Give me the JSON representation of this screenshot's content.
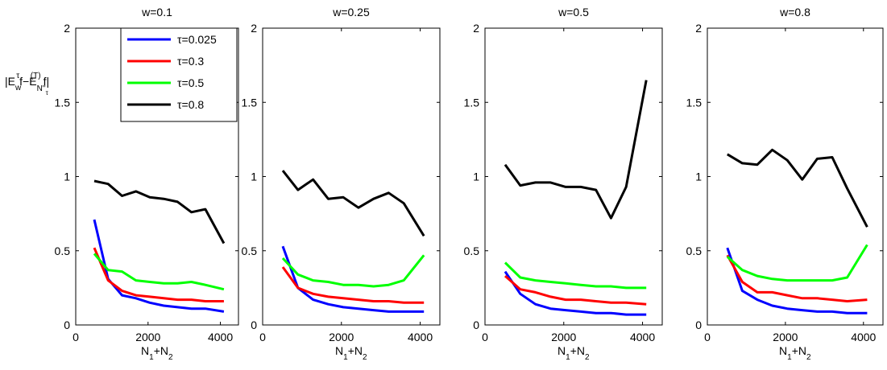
{
  "ylabel": {
    "prefix": "|E",
    "sub1": "w",
    "sup1": "τ",
    "mid": "f−E",
    "sub2": "N''",
    "sub2b": "τ",
    "sup2": "(T)",
    "suffix": "f|"
  },
  "xlabel": {
    "main": "N",
    "sub1": "1",
    "plus": "+N",
    "sub2": "2"
  },
  "legend": [
    {
      "label": "τ=0.025",
      "color": "#0000ff"
    },
    {
      "label": "τ=0.3",
      "color": "#ff0000"
    },
    {
      "label": "τ=0.5",
      "color": "#00ff00"
    },
    {
      "label": "τ=0.8",
      "color": "#000000"
    }
  ],
  "chart_data": [
    {
      "type": "line",
      "title": "w=0.1",
      "xlim": [
        0,
        4500
      ],
      "ylim": [
        0,
        2
      ],
      "xticks": [
        0,
        2000,
        4000
      ],
      "yticks": [
        0,
        0.5,
        1,
        1.5,
        2
      ],
      "ytick_labels": [
        "0",
        "0.5",
        "1",
        "1.5",
        "2"
      ],
      "x": [
        512,
        896,
        1280,
        1664,
        2048,
        2432,
        2816,
        3200,
        3584,
        4096
      ],
      "series": [
        {
          "name": "τ=0.025",
          "values": [
            0.71,
            0.31,
            0.2,
            0.18,
            0.15,
            0.13,
            0.12,
            0.11,
            0.11,
            0.09
          ]
        },
        {
          "name": "τ=0.3",
          "values": [
            0.52,
            0.3,
            0.23,
            0.2,
            0.19,
            0.18,
            0.17,
            0.17,
            0.16,
            0.16
          ]
        },
        {
          "name": "τ=0.5",
          "values": [
            0.48,
            0.37,
            0.36,
            0.3,
            0.29,
            0.28,
            0.28,
            0.29,
            0.27,
            0.24
          ]
        },
        {
          "name": "τ=0.8",
          "values": [
            0.97,
            0.95,
            0.87,
            0.9,
            0.86,
            0.85,
            0.83,
            0.76,
            0.78,
            0.55
          ]
        }
      ]
    },
    {
      "type": "line",
      "title": "w=0.25",
      "xlim": [
        0,
        4500
      ],
      "ylim": [
        0,
        2
      ],
      "xticks": [
        0,
        2000,
        4000
      ],
      "yticks": [
        0,
        0.5,
        1,
        1.5,
        2
      ],
      "ytick_labels": [
        "0",
        "0.5",
        "1",
        "1.5",
        "2"
      ],
      "x": [
        512,
        896,
        1280,
        1664,
        2048,
        2432,
        2816,
        3200,
        3584,
        4096
      ],
      "series": [
        {
          "name": "τ=0.025",
          "values": [
            0.53,
            0.25,
            0.17,
            0.14,
            0.12,
            0.11,
            0.1,
            0.09,
            0.09,
            0.09
          ]
        },
        {
          "name": "τ=0.3",
          "values": [
            0.39,
            0.25,
            0.21,
            0.19,
            0.18,
            0.17,
            0.16,
            0.16,
            0.15,
            0.15
          ]
        },
        {
          "name": "τ=0.5",
          "values": [
            0.45,
            0.34,
            0.3,
            0.29,
            0.27,
            0.27,
            0.26,
            0.27,
            0.3,
            0.47
          ]
        },
        {
          "name": "τ=0.8",
          "values": [
            1.04,
            0.91,
            0.98,
            0.85,
            0.86,
            0.79,
            0.85,
            0.89,
            0.82,
            0.6
          ]
        }
      ]
    },
    {
      "type": "line",
      "title": "w=0.5",
      "xlim": [
        0,
        4500
      ],
      "ylim": [
        0,
        2
      ],
      "xticks": [
        0,
        2000,
        4000
      ],
      "yticks": [
        0,
        0.5,
        1,
        1.5,
        2
      ],
      "ytick_labels": [
        "0",
        "0.5",
        "1",
        "1.5",
        "2"
      ],
      "x": [
        512,
        896,
        1280,
        1664,
        2048,
        2432,
        2816,
        3200,
        3584,
        4096
      ],
      "series": [
        {
          "name": "τ=0.025",
          "values": [
            0.36,
            0.21,
            0.14,
            0.11,
            0.1,
            0.09,
            0.08,
            0.08,
            0.07,
            0.07
          ]
        },
        {
          "name": "τ=0.3",
          "values": [
            0.33,
            0.24,
            0.22,
            0.19,
            0.17,
            0.17,
            0.16,
            0.15,
            0.15,
            0.14
          ]
        },
        {
          "name": "τ=0.5",
          "values": [
            0.42,
            0.32,
            0.3,
            0.29,
            0.28,
            0.27,
            0.26,
            0.26,
            0.25,
            0.25
          ]
        },
        {
          "name": "τ=0.8",
          "values": [
            1.08,
            0.94,
            0.96,
            0.96,
            0.93,
            0.93,
            0.91,
            0.72,
            0.93,
            1.65
          ]
        }
      ]
    },
    {
      "type": "line",
      "title": "w=0.8",
      "xlim": [
        0,
        4500
      ],
      "ylim": [
        0,
        2
      ],
      "xticks": [
        0,
        2000,
        4000
      ],
      "yticks": [
        0,
        0.5,
        1,
        1.5,
        2
      ],
      "ytick_labels": [
        "0",
        "0.5",
        "1",
        "1.5",
        "2"
      ],
      "x": [
        512,
        896,
        1280,
        1664,
        2048,
        2432,
        2816,
        3200,
        3584,
        4096
      ],
      "series": [
        {
          "name": "τ=0.025",
          "values": [
            0.52,
            0.23,
            0.17,
            0.13,
            0.11,
            0.1,
            0.09,
            0.09,
            0.08,
            0.08
          ]
        },
        {
          "name": "τ=0.3",
          "values": [
            0.47,
            0.29,
            0.22,
            0.22,
            0.2,
            0.18,
            0.18,
            0.17,
            0.16,
            0.17
          ]
        },
        {
          "name": "τ=0.5",
          "values": [
            0.46,
            0.37,
            0.33,
            0.31,
            0.3,
            0.3,
            0.3,
            0.3,
            0.32,
            0.54
          ]
        },
        {
          "name": "τ=0.8",
          "values": [
            1.15,
            1.09,
            1.08,
            1.18,
            1.11,
            0.98,
            1.12,
            1.13,
            0.92,
            0.66
          ]
        }
      ]
    }
  ]
}
